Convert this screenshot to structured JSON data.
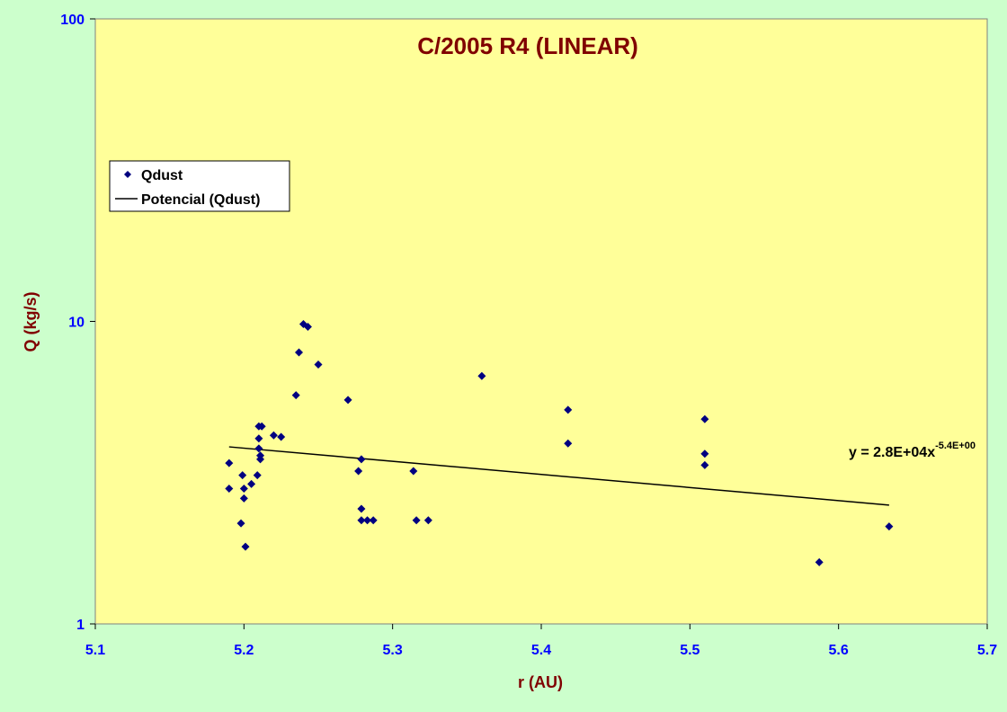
{
  "chart_data": {
    "type": "scatter",
    "title": "C/2005 R4 (LINEAR)",
    "xlabel": "r (AU)",
    "ylabel": "Q (kg/s)",
    "xlim": [
      5.1,
      5.7
    ],
    "ylim": [
      1,
      100
    ],
    "y_scale": "log",
    "x_ticks": [
      "5.1",
      "5.2",
      "5.3",
      "5.4",
      "5.5",
      "5.6",
      "5.7"
    ],
    "y_ticks": [
      "1",
      "10",
      "100"
    ],
    "grid": false,
    "legend_position": "top-left",
    "colors": {
      "plot_bg": "#ffff99",
      "outer_bg": "#ccffcc",
      "marker": "#000080",
      "trendline": "#000000",
      "title": "#800000",
      "tick_labels": "#0000ff"
    },
    "series": [
      {
        "name": "Qdust",
        "marker": "diamond",
        "points": [
          {
            "x": 5.19,
            "y": 3.4
          },
          {
            "x": 5.19,
            "y": 2.8
          },
          {
            "x": 5.198,
            "y": 2.15
          },
          {
            "x": 5.199,
            "y": 3.1
          },
          {
            "x": 5.2,
            "y": 2.8
          },
          {
            "x": 5.2,
            "y": 2.6
          },
          {
            "x": 5.201,
            "y": 1.8
          },
          {
            "x": 5.205,
            "y": 2.9
          },
          {
            "x": 5.209,
            "y": 3.1
          },
          {
            "x": 5.21,
            "y": 4.5
          },
          {
            "x": 5.21,
            "y": 4.1
          },
          {
            "x": 5.21,
            "y": 3.8
          },
          {
            "x": 5.211,
            "y": 3.5
          },
          {
            "x": 5.211,
            "y": 3.6
          },
          {
            "x": 5.212,
            "y": 4.5
          },
          {
            "x": 5.22,
            "y": 4.2
          },
          {
            "x": 5.225,
            "y": 4.15
          },
          {
            "x": 5.235,
            "y": 5.7
          },
          {
            "x": 5.237,
            "y": 7.9
          },
          {
            "x": 5.24,
            "y": 9.8
          },
          {
            "x": 5.243,
            "y": 9.6
          },
          {
            "x": 5.25,
            "y": 7.2
          },
          {
            "x": 5.27,
            "y": 5.5
          },
          {
            "x": 5.277,
            "y": 3.2
          },
          {
            "x": 5.279,
            "y": 3.5
          },
          {
            "x": 5.279,
            "y": 2.4
          },
          {
            "x": 5.279,
            "y": 2.2
          },
          {
            "x": 5.283,
            "y": 2.2
          },
          {
            "x": 5.287,
            "y": 2.2
          },
          {
            "x": 5.314,
            "y": 3.2
          },
          {
            "x": 5.316,
            "y": 2.2
          },
          {
            "x": 5.324,
            "y": 2.2
          },
          {
            "x": 5.36,
            "y": 6.6
          },
          {
            "x": 5.418,
            "y": 5.1
          },
          {
            "x": 5.418,
            "y": 3.95
          },
          {
            "x": 5.51,
            "y": 4.75
          },
          {
            "x": 5.51,
            "y": 3.65
          },
          {
            "x": 5.51,
            "y": 3.35
          },
          {
            "x": 5.587,
            "y": 1.6
          },
          {
            "x": 5.634,
            "y": 2.1
          }
        ]
      },
      {
        "name": "Potencial (Qdust)",
        "kind": "power-trendline",
        "coefficient": 28000,
        "exponent": -5.4,
        "x_range": [
          5.19,
          5.634
        ]
      }
    ],
    "annotations": {
      "equation_main": "y = 2.8E+04x",
      "equation_exponent": "-5.4E+00"
    }
  }
}
